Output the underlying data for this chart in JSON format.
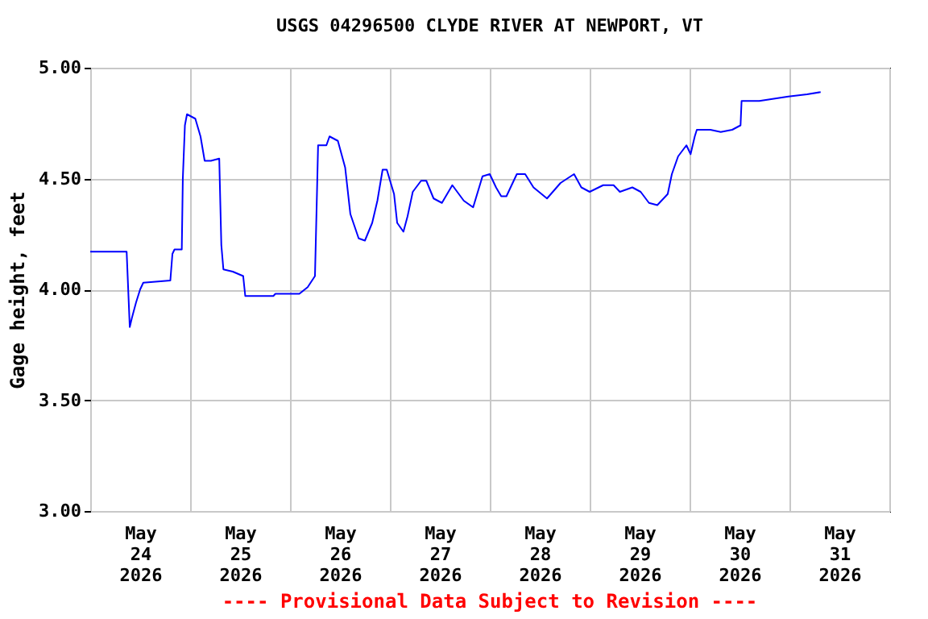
{
  "chart_data": {
    "type": "line",
    "title": "USGS 04296500 CLYDE RIVER AT NEWPORT, VT",
    "ylabel": "Gage height, feet",
    "annotations": [
      "---- Provisional Data Subject to Revision ----"
    ],
    "x": [
      "2026-05-24T00:00",
      "2026-05-24T08:45",
      "2026-05-24T09:30",
      "2026-05-24T10:00",
      "2026-05-24T11:00",
      "2026-05-24T12:00",
      "2026-05-24T12:45",
      "2026-05-24T19:15",
      "2026-05-24T19:45",
      "2026-05-24T20:15",
      "2026-05-24T22:00",
      "2026-05-24T22:15",
      "2026-05-24T22:45",
      "2026-05-24T23:15",
      "2026-05-25T01:15",
      "2026-05-25T02:30",
      "2026-05-25T03:30",
      "2026-05-25T05:00",
      "2026-05-25T07:00",
      "2026-05-25T07:30",
      "2026-05-25T08:00",
      "2026-05-25T10:15",
      "2026-05-25T12:45",
      "2026-05-25T13:15",
      "2026-05-25T20:00",
      "2026-05-25T20:30",
      "2026-05-26T02:15",
      "2026-05-26T04:15",
      "2026-05-26T06:00",
      "2026-05-26T06:30",
      "2026-05-26T06:45",
      "2026-05-26T08:45",
      "2026-05-26T09:30",
      "2026-05-26T11:30",
      "2026-05-26T13:15",
      "2026-05-26T14:30",
      "2026-05-26T16:30",
      "2026-05-26T18:00",
      "2026-05-26T19:45",
      "2026-05-26T21:00",
      "2026-05-26T22:15",
      "2026-05-26T23:15",
      "2026-05-27T01:00",
      "2026-05-27T01:45",
      "2026-05-27T03:15",
      "2026-05-27T04:15",
      "2026-05-27T05:30",
      "2026-05-27T07:30",
      "2026-05-27T08:45",
      "2026-05-27T10:30",
      "2026-05-27T12:30",
      "2026-05-27T15:00",
      "2026-05-27T17:45",
      "2026-05-27T20:00",
      "2026-05-27T22:15",
      "2026-05-28T00:00",
      "2026-05-28T01:30",
      "2026-05-28T02:45",
      "2026-05-28T04:00",
      "2026-05-28T06:30",
      "2026-05-28T08:30",
      "2026-05-28T10:30",
      "2026-05-28T13:45",
      "2026-05-28T17:00",
      "2026-05-28T20:15",
      "2026-05-28T22:00",
      "2026-05-29T00:00",
      "2026-05-29T03:15",
      "2026-05-29T05:45",
      "2026-05-29T07:15",
      "2026-05-29T10:15",
      "2026-05-29T12:15",
      "2026-05-29T14:15",
      "2026-05-29T16:15",
      "2026-05-29T18:45",
      "2026-05-29T19:45",
      "2026-05-29T21:15",
      "2026-05-29T23:15",
      "2026-05-30T00:15",
      "2026-05-30T01:15",
      "2026-05-30T01:45",
      "2026-05-30T05:00",
      "2026-05-30T07:30",
      "2026-05-30T10:15",
      "2026-05-30T12:15",
      "2026-05-30T12:30",
      "2026-05-30T16:45",
      "2026-05-30T23:45",
      "2026-05-31T04:15",
      "2026-05-31T07:30"
    ],
    "series": [
      {
        "color": "#0000ff",
        "values": [
          4.17,
          4.17,
          3.83,
          3.87,
          3.94,
          4.0,
          4.03,
          4.04,
          4.16,
          4.18,
          4.18,
          4.5,
          4.74,
          4.79,
          4.77,
          4.69,
          4.58,
          4.58,
          4.59,
          4.2,
          4.09,
          4.08,
          4.06,
          3.97,
          3.97,
          3.98,
          3.98,
          4.01,
          4.06,
          4.45,
          4.65,
          4.65,
          4.69,
          4.67,
          4.55,
          4.34,
          4.23,
          4.22,
          4.3,
          4.4,
          4.54,
          4.54,
          4.43,
          4.3,
          4.26,
          4.33,
          4.44,
          4.49,
          4.49,
          4.41,
          4.39,
          4.47,
          4.4,
          4.37,
          4.51,
          4.52,
          4.46,
          4.42,
          4.42,
          4.52,
          4.52,
          4.46,
          4.41,
          4.48,
          4.52,
          4.46,
          4.44,
          4.47,
          4.47,
          4.44,
          4.46,
          4.44,
          4.39,
          4.38,
          4.43,
          4.52,
          4.6,
          4.65,
          4.61,
          4.69,
          4.72,
          4.72,
          4.71,
          4.72,
          4.74,
          4.85,
          4.85,
          4.87,
          4.88,
          4.89
        ]
      }
    ],
    "xlim": [
      "2026-05-24T00:00",
      "2026-06-01T00:00"
    ],
    "xticks": [
      {
        "value": "2026-05-24T00:00",
        "label": null
      },
      {
        "value": "2026-05-24T12:00",
        "label": "May\n24\n2026"
      },
      {
        "value": "2026-05-25T00:00",
        "label": null
      },
      {
        "value": "2026-05-25T12:00",
        "label": "May\n25\n2026"
      },
      {
        "value": "2026-05-26T00:00",
        "label": null
      },
      {
        "value": "2026-05-26T12:00",
        "label": "May\n26\n2026"
      },
      {
        "value": "2026-05-27T00:00",
        "label": null
      },
      {
        "value": "2026-05-27T12:00",
        "label": "May\n27\n2026"
      },
      {
        "value": "2026-05-28T00:00",
        "label": null
      },
      {
        "value": "2026-05-28T12:00",
        "label": "May\n28\n2026"
      },
      {
        "value": "2026-05-29T00:00",
        "label": null
      },
      {
        "value": "2026-05-29T12:00",
        "label": "May\n29\n2026"
      },
      {
        "value": "2026-05-30T00:00",
        "label": null
      },
      {
        "value": "2026-05-30T12:00",
        "label": "May\n30\n2026"
      },
      {
        "value": "2026-05-31T00:00",
        "label": null
      },
      {
        "value": "2026-05-31T12:00",
        "label": "May\n31\n2026"
      },
      {
        "value": "2026-06-01T00:00",
        "label": null
      }
    ],
    "ylim": [
      3,
      5
    ],
    "yticks": [
      {
        "value": 3,
        "label": "3.00"
      },
      {
        "value": 3.5,
        "label": "3.50"
      },
      {
        "value": 4,
        "label": "4.00"
      },
      {
        "value": 4.5,
        "label": "4.50"
      },
      {
        "value": 5,
        "label": "5.00"
      }
    ],
    "grid": true
  }
}
